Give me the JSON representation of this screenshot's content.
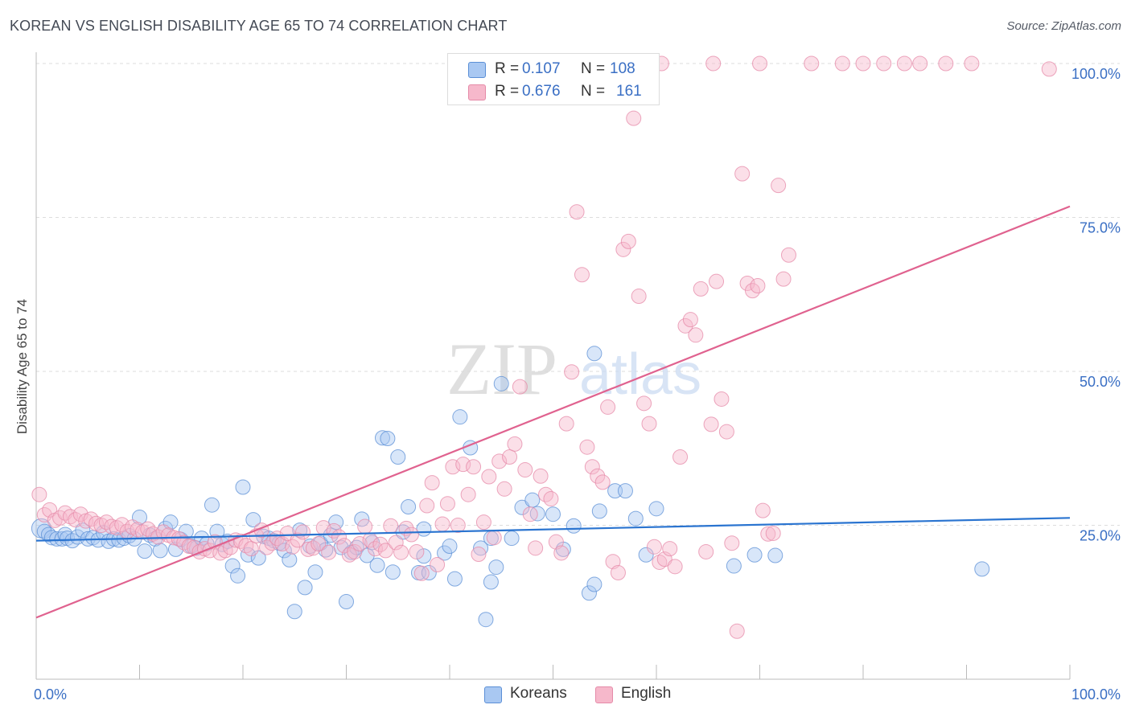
{
  "header": {
    "title": "KOREAN VS ENGLISH DISABILITY AGE 65 TO 74 CORRELATION CHART",
    "source": "Source: ZipAtlas.com"
  },
  "watermark": {
    "zip": "ZIP",
    "atlas": "atlas"
  },
  "legend_top": {
    "r_label": "R =",
    "n_label": "N =",
    "koreans": {
      "r": "0.107",
      "n": "108"
    },
    "english": {
      "r": "0.676",
      "n": "161"
    }
  },
  "legend_bottom": {
    "koreans": "Koreans",
    "english": "English"
  },
  "colors": {
    "koreans_fill": "#a9c8f2",
    "koreans_stroke": "#5b8fd6",
    "koreans_line": "#2a74d0",
    "english_fill": "#f6b8cb",
    "english_stroke": "#e58aa8",
    "english_line": "#e0628f",
    "value_text": "#3a6fc4",
    "grid": "#dddddd"
  },
  "chart_data": {
    "type": "scatter",
    "title": "KOREAN VS ENGLISH DISABILITY AGE 65 TO 74 CORRELATION CHART",
    "xlabel": "",
    "ylabel": "Disability Age 65 to 74",
    "xlim": [
      0,
      100
    ],
    "ylim": [
      0,
      105
    ],
    "x_tick_labels": [
      "0.0%",
      "100.0%"
    ],
    "y_tick_labels": [
      "25.0%",
      "50.0%",
      "75.0%",
      "100.0%"
    ],
    "y_ticks": [
      25,
      50,
      75,
      100
    ],
    "grid": true,
    "legend_position": "top-center",
    "series": [
      {
        "name": "Koreans",
        "r": 0.107,
        "n": 108,
        "trend": {
          "x": [
            0,
            100
          ],
          "y": [
            22.5,
            26.2
          ]
        },
        "points": [
          [
            0.5,
            24.5
          ],
          [
            0.8,
            24.0
          ],
          [
            1.2,
            23.5
          ],
          [
            1.5,
            23.0
          ],
          [
            2.0,
            22.8
          ],
          [
            2.5,
            22.8
          ],
          [
            2.8,
            23.5
          ],
          [
            3.0,
            22.9
          ],
          [
            3.5,
            22.5
          ],
          [
            4.0,
            23.1
          ],
          [
            4.5,
            24.2
          ],
          [
            5.0,
            22.8
          ],
          [
            5.5,
            23.0
          ],
          [
            6.0,
            22.6
          ],
          [
            6.5,
            23.8
          ],
          [
            7.0,
            22.4
          ],
          [
            7.5,
            22.8
          ],
          [
            8.0,
            22.6
          ],
          [
            8.5,
            22.9
          ],
          [
            9.0,
            23.3
          ],
          [
            9.5,
            22.8
          ],
          [
            10.0,
            26.3
          ],
          [
            10.5,
            20.8
          ],
          [
            11.0,
            23.4
          ],
          [
            11.5,
            22.8
          ],
          [
            12.0,
            20.9
          ],
          [
            12.5,
            24.5
          ],
          [
            13.0,
            25.5
          ],
          [
            13.5,
            21.1
          ],
          [
            14.0,
            22.7
          ],
          [
            14.5,
            24.0
          ],
          [
            15.0,
            21.6
          ],
          [
            15.5,
            21.3
          ],
          [
            16.0,
            22.9
          ],
          [
            16.5,
            22.0
          ],
          [
            17.0,
            28.3
          ],
          [
            17.5,
            24.0
          ],
          [
            18.0,
            21.9
          ],
          [
            18.5,
            22.4
          ],
          [
            19.0,
            18.4
          ],
          [
            19.5,
            16.8
          ],
          [
            20.0,
            31.2
          ],
          [
            20.5,
            20.2
          ],
          [
            21.0,
            25.9
          ],
          [
            21.5,
            19.7
          ],
          [
            22.0,
            23.2
          ],
          [
            22.5,
            22.9
          ],
          [
            23.0,
            22.5
          ],
          [
            23.5,
            22.1
          ],
          [
            24.0,
            20.9
          ],
          [
            24.5,
            19.4
          ],
          [
            25.0,
            11.0
          ],
          [
            25.5,
            24.2
          ],
          [
            26.0,
            14.9
          ],
          [
            26.5,
            21.6
          ],
          [
            27.0,
            17.4
          ],
          [
            27.5,
            22.1
          ],
          [
            28.0,
            21.0
          ],
          [
            28.5,
            23.4
          ],
          [
            29.0,
            25.5
          ],
          [
            29.5,
            21.4
          ],
          [
            30.0,
            12.6
          ],
          [
            30.5,
            20.6
          ],
          [
            31.0,
            21.4
          ],
          [
            31.5,
            26.0
          ],
          [
            32.0,
            20.1
          ],
          [
            32.5,
            22.2
          ],
          [
            33.0,
            18.5
          ],
          [
            33.5,
            39.2
          ],
          [
            34.0,
            39.1
          ],
          [
            34.5,
            17.4
          ],
          [
            35.0,
            36.1
          ],
          [
            35.5,
            23.9
          ],
          [
            36.0,
            28.0
          ],
          [
            37.0,
            17.3
          ],
          [
            37.5,
            20.0
          ],
          [
            37.5,
            24.4
          ],
          [
            38.0,
            17.3
          ],
          [
            39.5,
            20.5
          ],
          [
            40.0,
            21.6
          ],
          [
            40.5,
            16.3
          ],
          [
            41.0,
            42.6
          ],
          [
            42.0,
            37.6
          ],
          [
            43.0,
            21.3
          ],
          [
            43.5,
            9.7
          ],
          [
            44.0,
            15.8
          ],
          [
            44.0,
            22.9
          ],
          [
            44.5,
            18.2
          ],
          [
            45.0,
            48.0
          ],
          [
            46.0,
            22.9
          ],
          [
            47.0,
            27.9
          ],
          [
            48.0,
            29.1
          ],
          [
            48.5,
            26.9
          ],
          [
            50.0,
            26.8
          ],
          [
            51.0,
            21.1
          ],
          [
            52.0,
            24.9
          ],
          [
            53.5,
            14.0
          ],
          [
            54.0,
            15.4
          ],
          [
            54.0,
            52.9
          ],
          [
            54.5,
            27.3
          ],
          [
            56.0,
            30.6
          ],
          [
            57.0,
            30.6
          ],
          [
            58.0,
            26.1
          ],
          [
            59.0,
            20.2
          ],
          [
            60.0,
            27.7
          ],
          [
            67.5,
            18.4
          ],
          [
            69.5,
            20.2
          ],
          [
            71.5,
            20.1
          ],
          [
            91.5,
            17.9
          ]
        ]
      },
      {
        "name": "English",
        "r": 0.676,
        "n": 161,
        "trend": {
          "x": [
            0,
            100
          ],
          "y": [
            10.0,
            76.8
          ]
        },
        "points": [
          [
            0.3,
            30.0
          ],
          [
            0.8,
            26.7
          ],
          [
            1.3,
            27.5
          ],
          [
            1.8,
            25.8
          ],
          [
            2.3,
            26.2
          ],
          [
            2.8,
            27.0
          ],
          [
            3.3,
            26.4
          ],
          [
            3.8,
            25.9
          ],
          [
            4.3,
            26.8
          ],
          [
            4.8,
            25.7
          ],
          [
            5.3,
            26.0
          ],
          [
            5.8,
            25.3
          ],
          [
            6.3,
            25.0
          ],
          [
            6.8,
            25.5
          ],
          [
            7.3,
            24.8
          ],
          [
            7.8,
            24.6
          ],
          [
            8.3,
            25.1
          ],
          [
            8.8,
            24.0
          ],
          [
            9.3,
            24.7
          ],
          [
            9.8,
            24.3
          ],
          [
            10.3,
            23.9
          ],
          [
            10.8,
            24.4
          ],
          [
            11.3,
            23.6
          ],
          [
            11.8,
            23.1
          ],
          [
            12.3,
            23.9
          ],
          [
            12.8,
            23.4
          ],
          [
            13.3,
            23.0
          ],
          [
            13.8,
            22.8
          ],
          [
            14.3,
            22.2
          ],
          [
            14.8,
            21.6
          ],
          [
            15.3,
            21.4
          ],
          [
            15.8,
            20.7
          ],
          [
            16.3,
            21.2
          ],
          [
            16.8,
            20.9
          ],
          [
            17.3,
            22.3
          ],
          [
            17.8,
            20.5
          ],
          [
            18.3,
            20.9
          ],
          [
            18.8,
            21.4
          ],
          [
            19.3,
            22.6
          ],
          [
            19.8,
            22.4
          ],
          [
            20.3,
            21.7
          ],
          [
            20.8,
            21.2
          ],
          [
            21.3,
            23.3
          ],
          [
            21.8,
            24.2
          ],
          [
            22.3,
            21.4
          ],
          [
            22.8,
            22.1
          ],
          [
            23.3,
            22.9
          ],
          [
            23.8,
            22.0
          ],
          [
            24.3,
            23.7
          ],
          [
            24.8,
            21.5
          ],
          [
            25.3,
            22.6
          ],
          [
            25.8,
            23.9
          ],
          [
            26.3,
            21.1
          ],
          [
            26.8,
            21.3
          ],
          [
            27.3,
            22.0
          ],
          [
            27.8,
            24.6
          ],
          [
            28.3,
            20.6
          ],
          [
            28.8,
            24.1
          ],
          [
            29.3,
            23.1
          ],
          [
            29.8,
            21.7
          ],
          [
            30.3,
            20.2
          ],
          [
            30.8,
            20.7
          ],
          [
            31.3,
            22.0
          ],
          [
            31.8,
            24.8
          ],
          [
            32.3,
            22.6
          ],
          [
            32.8,
            21.2
          ],
          [
            33.3,
            21.9
          ],
          [
            33.8,
            20.9
          ],
          [
            34.3,
            24.9
          ],
          [
            34.8,
            22.2
          ],
          [
            35.3,
            20.6
          ],
          [
            35.8,
            24.5
          ],
          [
            36.3,
            23.5
          ],
          [
            36.8,
            20.7
          ],
          [
            37.3,
            17.2
          ],
          [
            37.8,
            28.2
          ],
          [
            38.3,
            31.9
          ],
          [
            38.8,
            18.6
          ],
          [
            39.3,
            25.2
          ],
          [
            39.8,
            28.5
          ],
          [
            40.3,
            34.5
          ],
          [
            40.8,
            25.0
          ],
          [
            41.3,
            34.9
          ],
          [
            41.8,
            30.0
          ],
          [
            42.3,
            34.5
          ],
          [
            42.8,
            20.3
          ],
          [
            43.3,
            25.5
          ],
          [
            43.8,
            32.9
          ],
          [
            44.3,
            23.0
          ],
          [
            44.8,
            35.4
          ],
          [
            45.3,
            30.9
          ],
          [
            45.8,
            36.1
          ],
          [
            46.3,
            38.2
          ],
          [
            46.8,
            47.5
          ],
          [
            47.3,
            34.0
          ],
          [
            47.8,
            26.8
          ],
          [
            48.3,
            21.3
          ],
          [
            48.8,
            33.0
          ],
          [
            49.3,
            30.0
          ],
          [
            49.8,
            29.3
          ],
          [
            50.3,
            22.3
          ],
          [
            50.8,
            20.5
          ],
          [
            51.3,
            41.5
          ],
          [
            51.8,
            49.9
          ],
          [
            52.3,
            75.9
          ],
          [
            52.8,
            65.7
          ],
          [
            53.3,
            37.7
          ],
          [
            53.8,
            34.5
          ],
          [
            54.3,
            33.0
          ],
          [
            54.8,
            32.0
          ],
          [
            55.3,
            44.2
          ],
          [
            55.8,
            19.1
          ],
          [
            56.3,
            17.3
          ],
          [
            56.8,
            69.8
          ],
          [
            57.3,
            71.1
          ],
          [
            57.8,
            91.1
          ],
          [
            58.3,
            62.2
          ],
          [
            58.8,
            44.8
          ],
          [
            59.3,
            41.5
          ],
          [
            59.8,
            21.5
          ],
          [
            60.3,
            19.0
          ],
          [
            60.8,
            19.5
          ],
          [
            61.3,
            21.2
          ],
          [
            61.8,
            18.3
          ],
          [
            62.3,
            36.1
          ],
          [
            62.8,
            57.4
          ],
          [
            63.3,
            58.4
          ],
          [
            63.8,
            55.9
          ],
          [
            64.3,
            63.4
          ],
          [
            64.8,
            20.7
          ],
          [
            65.3,
            41.4
          ],
          [
            65.8,
            64.6
          ],
          [
            66.3,
            45.5
          ],
          [
            66.8,
            40.2
          ],
          [
            67.3,
            22.1
          ],
          [
            67.8,
            7.8
          ],
          [
            68.3,
            82.1
          ],
          [
            68.8,
            64.3
          ],
          [
            69.3,
            63.1
          ],
          [
            69.8,
            63.9
          ],
          [
            70.3,
            27.4
          ],
          [
            70.8,
            23.6
          ],
          [
            71.3,
            23.7
          ],
          [
            71.8,
            80.2
          ],
          [
            72.3,
            65.0
          ],
          [
            72.8,
            68.9
          ],
          [
            55.5,
            100.0
          ],
          [
            58.0,
            100.0
          ],
          [
            58.5,
            100.0
          ],
          [
            60.5,
            100.0
          ],
          [
            65.5,
            100.0
          ],
          [
            70.0,
            100.0
          ],
          [
            75.0,
            100.0
          ],
          [
            78.0,
            100.0
          ],
          [
            80.0,
            100.0
          ],
          [
            82.0,
            100.0
          ],
          [
            84.0,
            100.0
          ],
          [
            85.5,
            100.0
          ],
          [
            88.0,
            100.0
          ],
          [
            90.5,
            100.0
          ],
          [
            98.0,
            99.1
          ]
        ]
      }
    ]
  }
}
